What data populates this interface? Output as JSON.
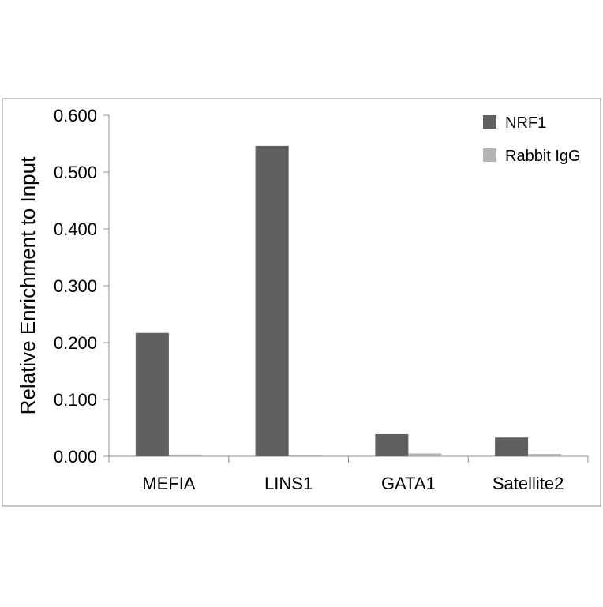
{
  "chart_data": {
    "type": "bar",
    "ylabel": "Relative Enrichment to Input",
    "xlabel": "",
    "categories": [
      "MEFIA",
      "LINS1",
      "GATA1",
      "Satellite2"
    ],
    "series": [
      {
        "name": "NRF1",
        "values": [
          0.217,
          0.546,
          0.039,
          0.033
        ],
        "color": "#5f5f5f"
      },
      {
        "name": "Rabbit IgG",
        "values": [
          0.003,
          0.002,
          0.005,
          0.004
        ],
        "color": "#b3b3b3"
      }
    ],
    "ylim": [
      0,
      0.6
    ],
    "yticks": [
      "0.000",
      "0.100",
      "0.200",
      "0.300",
      "0.400",
      "0.500",
      "0.600"
    ],
    "grid": false,
    "legend": "top-right"
  }
}
